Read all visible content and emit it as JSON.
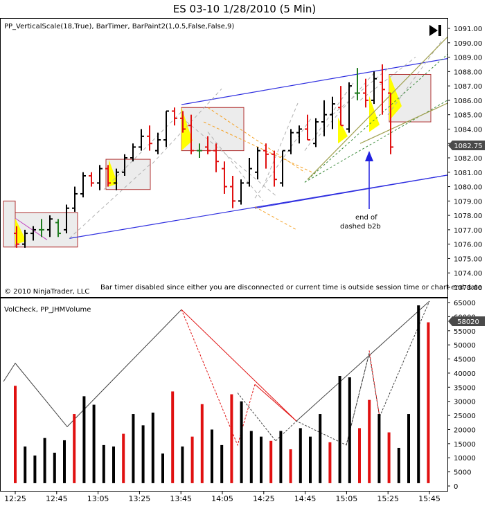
{
  "window": {
    "title": "ES 03-10  1/28/2010 (5 Min)"
  },
  "price_panel": {
    "indicators_label": "PP_VerticalScale(18,True), BarTimer, BarPaint2(1,0.5,False,False,9)",
    "copyright": "© 2010 NinjaTrader, LLC",
    "bar_timer_message": "Bar timer disabled since either you are disconnected or current time is outside session time or chart end date",
    "annotation": [
      "end of",
      "dashed b2b"
    ],
    "last_price_label": "1082.75",
    "play_icon": "skip-to-end-icon"
  },
  "volume_panel": {
    "indicators_label": "VolCheck, PP_JHMVolume",
    "last_volume_label": "58020"
  },
  "colors": {
    "up_bar": "#000000",
    "down_bar": "#e01010",
    "neutral_bar": "#1e7a1e",
    "highlight_fill": "#ffff00",
    "trendline": "#3030e0",
    "box_border": "#b03030",
    "box_fill": "#ececec",
    "orange_line": "#f5a020",
    "gray_line": "#b0b0b0",
    "green_line": "#3a8a3a",
    "olive_line": "#a0a050"
  },
  "chart_data": [
    {
      "type": "candlestick",
      "title": "ES 03-10  1/28/2010 (5 Min)",
      "xlabel": "",
      "ylabel": "",
      "ylim": [
        1072.4,
        1091.4
      ],
      "yticks": [
        1073,
        1074,
        1075,
        1076,
        1077,
        1078,
        1079,
        1080,
        1081,
        1082,
        1083,
        1084,
        1085,
        1086,
        1087,
        1088,
        1089,
        1090,
        1091
      ],
      "ytick_labels": [
        "1073.00",
        "1074.00",
        "1075.00",
        "1076.00",
        "1077.00",
        "1078.00",
        "1079.00",
        "1080.00",
        "1081.00",
        "1082.00",
        "1083.00",
        "1084.00",
        "1085.00",
        "1086.00",
        "1087.00",
        "1088.00",
        "1089.00",
        "1090.00",
        "1091.00"
      ],
      "grid": false,
      "series": [
        {
          "ohlc": [
            [
              1076.75,
              1077.25,
              1075.75,
              1076.0
            ],
            [
              1076.0,
              1077.0,
              1075.75,
              1076.75
            ],
            [
              1076.75,
              1077.25,
              1076.25,
              1077.0
            ],
            [
              1077.0,
              1077.75,
              1076.5,
              1077.0
            ],
            [
              1077.0,
              1078.0,
              1076.5,
              1077.75
            ],
            [
              1077.5,
              1077.75,
              1076.5,
              1076.75
            ],
            [
              1077.0,
              1078.75,
              1076.75,
              1078.5
            ],
            [
              1078.5,
              1080.0,
              1078.25,
              1079.5
            ],
            [
              1079.5,
              1081.0,
              1079.25,
              1080.75
            ],
            [
              1080.75,
              1081.0,
              1080.0,
              1080.25
            ],
            [
              1080.25,
              1081.5,
              1079.75,
              1081.25
            ],
            [
              1081.25,
              1081.5,
              1080.0,
              1080.25
            ],
            [
              1080.25,
              1081.25,
              1079.75,
              1081.0
            ],
            [
              1081.0,
              1082.25,
              1080.75,
              1082.0
            ],
            [
              1082.0,
              1083.0,
              1081.75,
              1082.75
            ],
            [
              1082.75,
              1084.0,
              1082.5,
              1083.5
            ],
            [
              1083.5,
              1084.25,
              1082.5,
              1083.0
            ],
            [
              1082.5,
              1083.75,
              1082.25,
              1083.25
            ],
            [
              1083.25,
              1085.25,
              1082.75,
              1085.25
            ],
            [
              1085.25,
              1085.5,
              1084.25,
              1084.75
            ],
            [
              1084.75,
              1085.25,
              1083.75,
              1084.0
            ],
            [
              1084.25,
              1085.0,
              1082.25,
              1082.5
            ],
            [
              1082.5,
              1083.0,
              1082.0,
              1082.5
            ],
            [
              1082.75,
              1083.5,
              1082.25,
              1082.5
            ],
            [
              1082.5,
              1083.0,
              1081.0,
              1081.75
            ],
            [
              1081.25,
              1081.75,
              1079.5,
              1080.0
            ],
            [
              1080.0,
              1080.75,
              1078.5,
              1079.0
            ],
            [
              1079.0,
              1080.5,
              1078.75,
              1080.25
            ],
            [
              1080.25,
              1082.0,
              1080.0,
              1081.25
            ],
            [
              1081.0,
              1082.75,
              1080.5,
              1082.5
            ],
            [
              1082.5,
              1083.0,
              1081.25,
              1082.25
            ],
            [
              1082.25,
              1082.5,
              1080.0,
              1080.5
            ],
            [
              1080.25,
              1082.5,
              1080.0,
              1082.5
            ],
            [
              1082.5,
              1084.0,
              1082.25,
              1083.75
            ],
            [
              1083.75,
              1084.25,
              1083.0,
              1084.0
            ],
            [
              1084.0,
              1085.0,
              1083.25,
              1083.25
            ],
            [
              1083.0,
              1084.75,
              1082.75,
              1084.5
            ],
            [
              1084.5,
              1086.0,
              1083.5,
              1085.0
            ],
            [
              1085.0,
              1086.25,
              1084.0,
              1085.75
            ],
            [
              1085.5,
              1087.0,
              1084.25,
              1084.25
            ],
            [
              1084.0,
              1087.25,
              1083.75,
              1087.0
            ],
            [
              1086.5,
              1088.25,
              1086.0,
              1086.5
            ],
            [
              1086.5,
              1087.5,
              1085.5,
              1086.0
            ],
            [
              1086.0,
              1088.0,
              1085.75,
              1087.5
            ],
            [
              1087.25,
              1088.5,
              1085.0,
              1086.75
            ],
            [
              1086.5,
              1086.5,
              1082.25,
              1082.75
            ]
          ]
        }
      ]
    },
    {
      "type": "bar",
      "title": "",
      "xlabel": "",
      "ylabel": "",
      "ylim": [
        1000,
        66000
      ],
      "yticks": [
        0,
        5000,
        10000,
        15000,
        20000,
        25000,
        30000,
        35000,
        40000,
        45000,
        50000,
        55000,
        60000,
        65000
      ],
      "ytick_labels": [
        "0",
        "5000",
        "10000",
        "15000",
        "20000",
        "25000",
        "30000",
        "35000",
        "40000",
        "45000",
        "50000",
        "55000",
        "60000",
        "65000"
      ],
      "xtick_labels": [
        "12:25",
        "12:45",
        "13:05",
        "13:25",
        "13:45",
        "14:05",
        "14:25",
        "14:45",
        "15:05",
        "15:25",
        "15:45"
      ],
      "grid": false,
      "series": [
        {
          "name": "",
          "values": [
            35500,
            14000,
            10800,
            17000,
            11800,
            16200,
            25500,
            31800,
            28800,
            14500,
            14000,
            18500,
            25500,
            21500,
            26000,
            11500,
            33500,
            14000,
            17500,
            29000,
            20000,
            14500,
            32500,
            30000,
            19500,
            17500,
            16000,
            19500,
            13000,
            20500,
            17500,
            25500,
            15500,
            39000,
            38500,
            20500,
            30500,
            25500,
            19000,
            13500,
            25500,
            64000,
            58000
          ]
        }
      ]
    }
  ]
}
